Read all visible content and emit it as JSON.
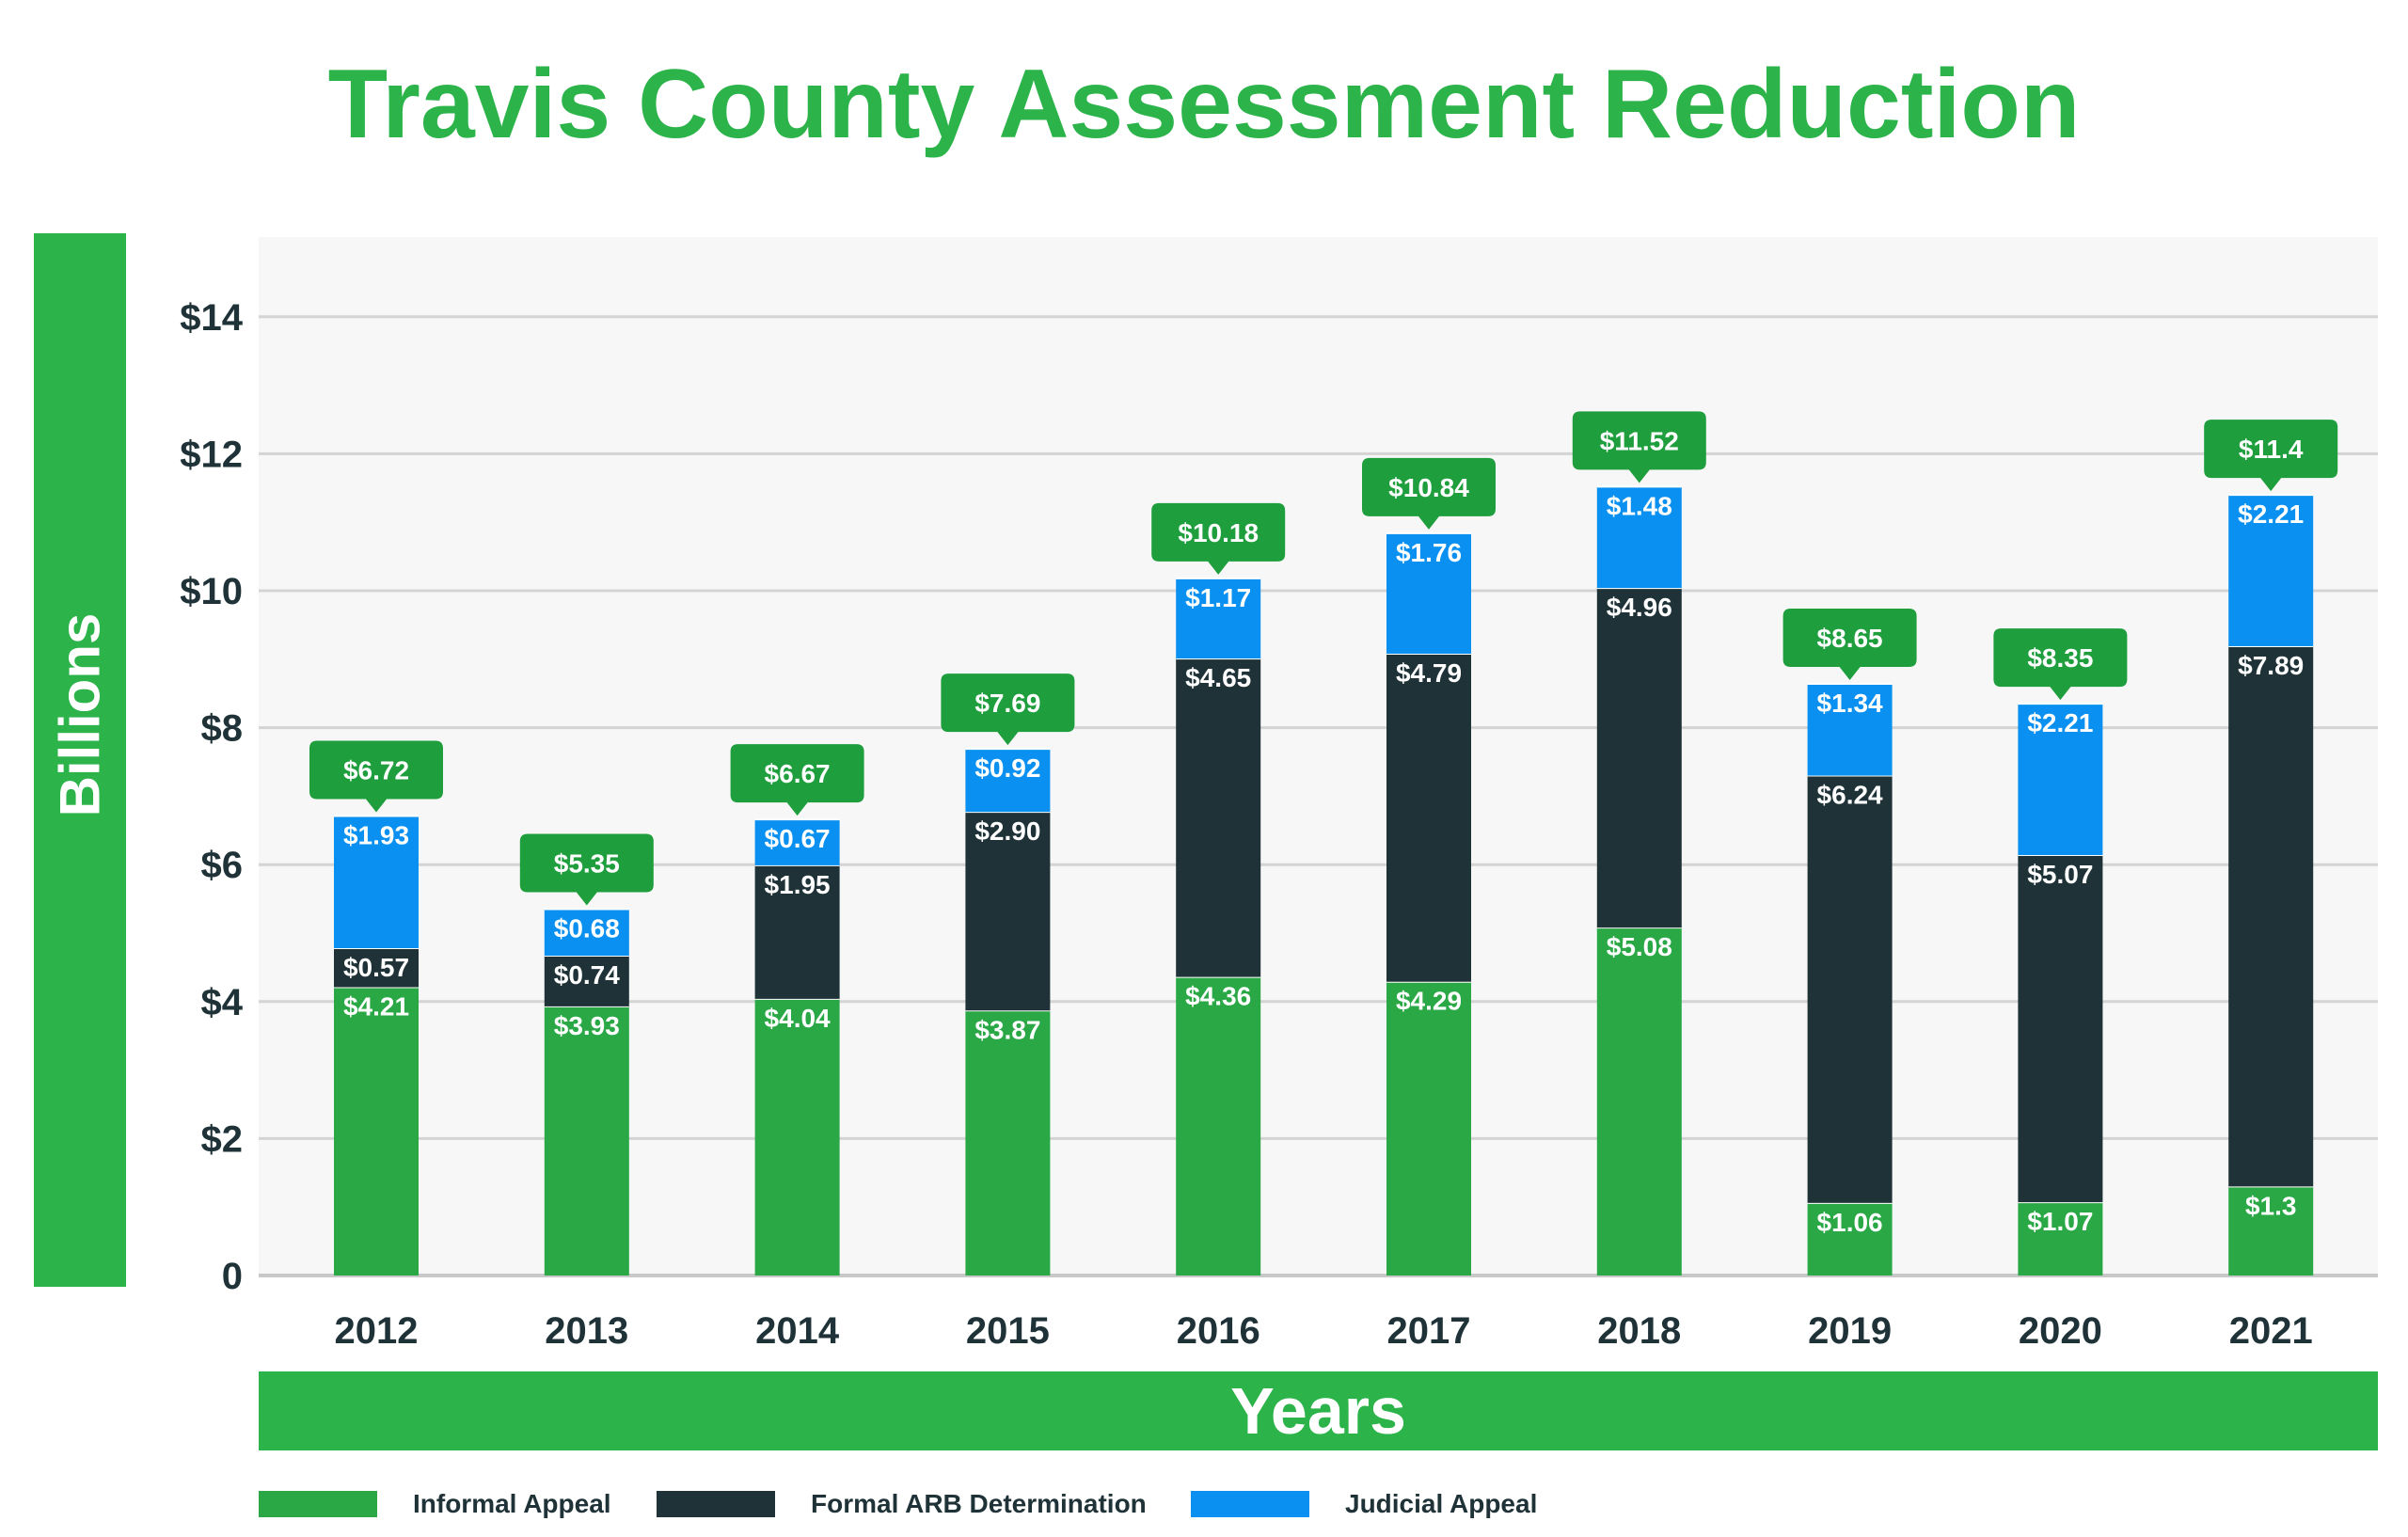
{
  "chart_data": {
    "type": "bar",
    "stacked": true,
    "title": "Travis County Assessment Reduction",
    "xlabel": "Years",
    "ylabel": "Billions",
    "ylim": [
      0,
      15
    ],
    "yticks": [
      0,
      2,
      4,
      6,
      8,
      10,
      12,
      14
    ],
    "ytick_labels": [
      "0",
      "$2",
      "$4",
      "$6",
      "$8",
      "$10",
      "$12",
      "$14"
    ],
    "grid": true,
    "legend_position": "bottom-left",
    "categories": [
      "2012",
      "2013",
      "2014",
      "2015",
      "2016",
      "2017",
      "2018",
      "2019",
      "2020",
      "2021"
    ],
    "series": [
      {
        "name": "Informal Appeal",
        "color": "#2aa845",
        "values": [
          4.21,
          3.93,
          4.04,
          3.87,
          4.36,
          4.29,
          5.08,
          1.06,
          1.07,
          1.3
        ],
        "labels": [
          "$4.21",
          "$3.93",
          "$4.04",
          "$3.87",
          "$4.36",
          "$4.29",
          "$5.08",
          "$1.06",
          "$1.07",
          "$1.3"
        ]
      },
      {
        "name": "Formal ARB Determination",
        "color": "#1f3237",
        "values": [
          0.57,
          0.74,
          1.95,
          2.9,
          4.65,
          4.79,
          4.96,
          6.24,
          5.07,
          7.89
        ],
        "labels": [
          "$0.57",
          "$0.74",
          "$1.95",
          "$2.90",
          "$4.65",
          "$4.79",
          "$4.96",
          "$6.24",
          "$5.07",
          "$7.89"
        ]
      },
      {
        "name": "Judicial Appeal",
        "color": "#0a90f0",
        "values": [
          1.93,
          0.68,
          0.67,
          0.92,
          1.17,
          1.76,
          1.48,
          1.34,
          2.21,
          2.21
        ],
        "labels": [
          "$1.93",
          "$0.68",
          "$0.67",
          "$0.92",
          "$1.17",
          "$1.76",
          "$1.48",
          "$1.34",
          "$2.21",
          "$2.21"
        ]
      }
    ],
    "totals": [
      6.72,
      5.35,
      6.67,
      7.69,
      10.18,
      10.84,
      11.52,
      8.65,
      8.35,
      11.4
    ],
    "total_labels": [
      "$6.72",
      "$5.35",
      "$6.67",
      "$7.69",
      "$10.18",
      "$10.84",
      "$11.52",
      "$8.65",
      "$8.35",
      "$11.4"
    ],
    "colors": {
      "title": "#2cb34a",
      "band": "#2cb34a",
      "callout": "#1e9e3c",
      "plot_bg": "#f7f7f7",
      "grid": "#d4d4d4",
      "axis_text": "#1f3237"
    }
  }
}
